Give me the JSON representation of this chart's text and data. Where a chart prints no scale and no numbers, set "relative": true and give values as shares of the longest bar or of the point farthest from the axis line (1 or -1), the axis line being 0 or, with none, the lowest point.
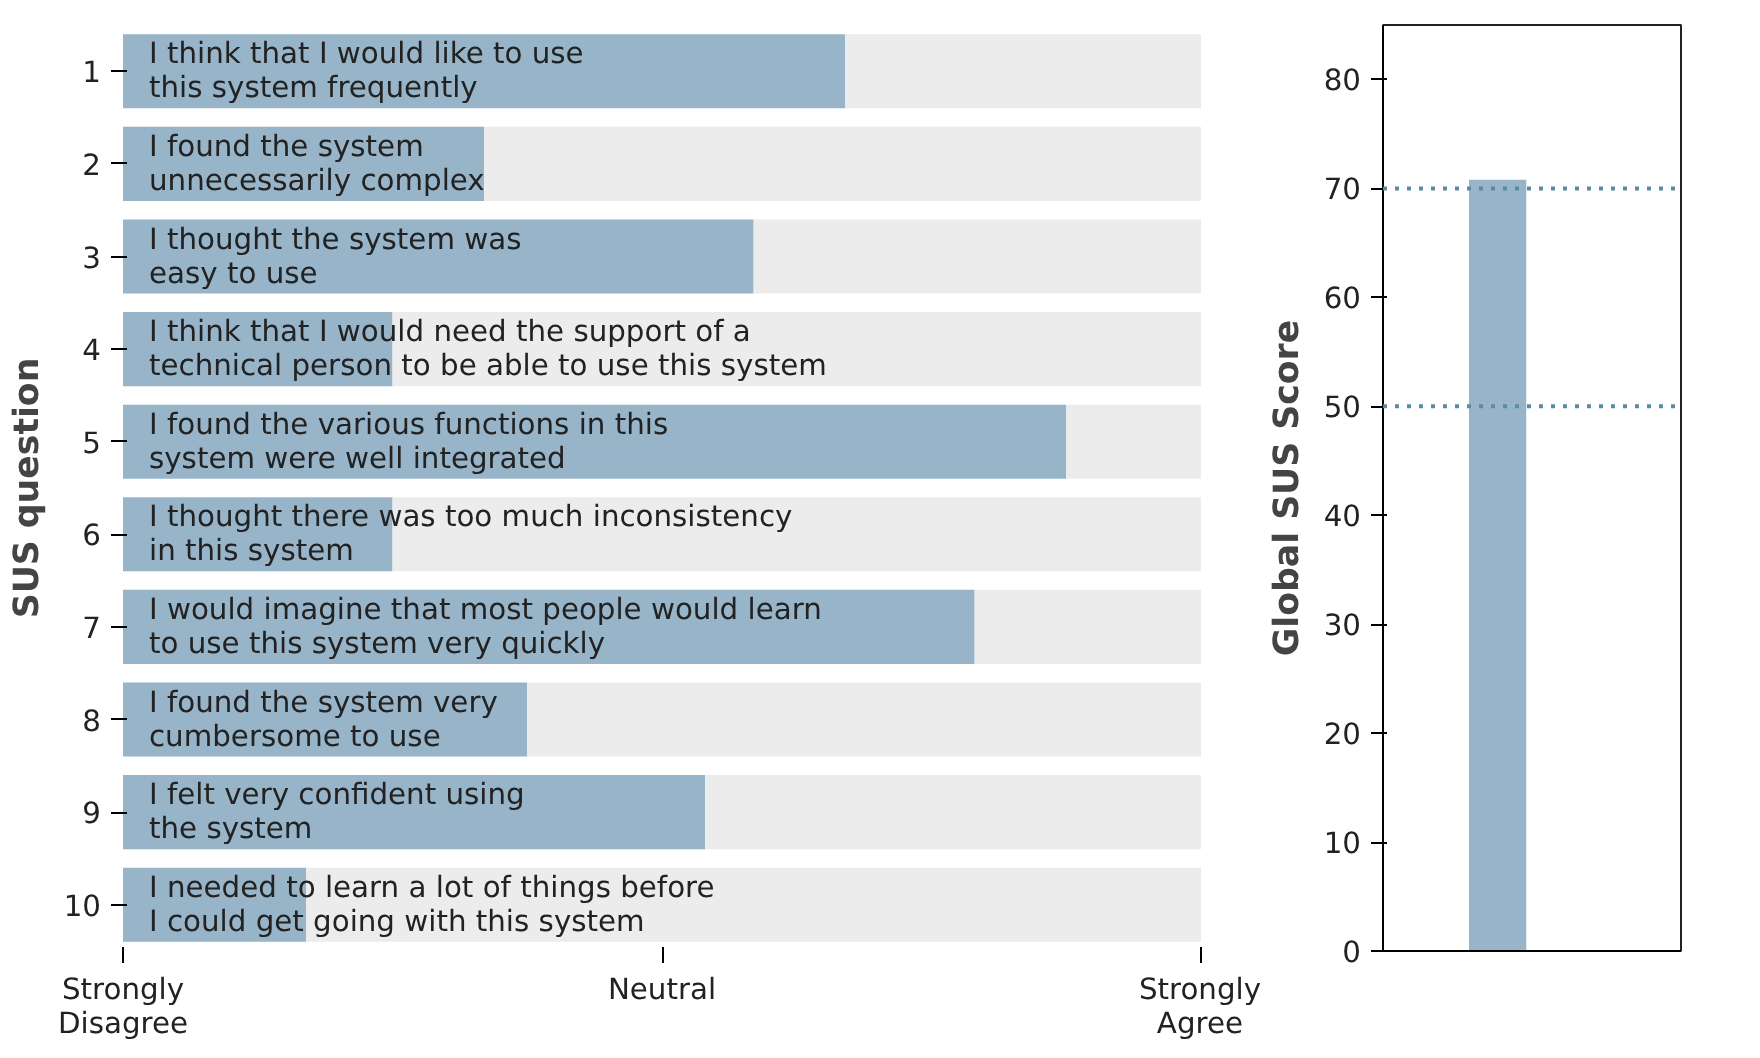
{
  "chart_data": [
    {
      "type": "bar",
      "orientation": "horizontal",
      "ylabel": "SUS question",
      "relative": true,
      "stacked": true,
      "categories": [
        "1",
        "2",
        "3",
        "4",
        "5",
        "6",
        "7",
        "8",
        "9",
        "10"
      ],
      "series": [
        {
          "color": "#98b4c8",
          "values": [
            0.67,
            0.335,
            0.585,
            0.25,
            0.875,
            0.25,
            0.79,
            0.375,
            0.54,
            0.17
          ]
        },
        {
          "color": "#ececec",
          "values": [
            0.33,
            0.665,
            0.415,
            0.75,
            0.125,
            0.75,
            0.21,
            0.625,
            0.46,
            0.83
          ]
        }
      ],
      "grid": false,
      "annotations": [
        "Strongly\nDisagree",
        "Neutral",
        "Strongly\nAgree",
        {
          "text": "I think that I would like to use\nthis system frequently",
          "y": "1"
        },
        {
          "text": "I found the system\nunnecessarily complex",
          "y": "2"
        },
        {
          "text": "I thought the system was\neasy to use",
          "y": "3"
        },
        {
          "text": "I think that I would need the support of a\ntechnical person to be able to use this system",
          "y": "4"
        },
        {
          "text": "I found the various functions in this\nsystem were well integrated",
          "y": "5"
        },
        {
          "text": "I thought there was too much inconsistency\nin this system",
          "y": "6"
        },
        {
          "text": "I would imagine that most people would learn\nto use this system very quickly",
          "y": "7"
        },
        {
          "text": "I found the system very\ncumbersome to use",
          "y": "8"
        },
        {
          "text": "I felt very confident using\nthe system",
          "y": "9"
        },
        {
          "text": "I needed to learn a lot of things before\nI could get going with this system",
          "y": "10"
        }
      ]
    },
    {
      "type": "bar",
      "ylabel": "Global SUS Score",
      "categories": [
        null
      ],
      "series": [
        {
          "color": "#98b4c8",
          "values": [
            70.8
          ]
        }
      ],
      "ylim": [
        0,
        85
      ],
      "yticks": [
        0,
        10,
        20,
        30,
        40,
        50,
        60,
        70,
        80
      ],
      "grid": false,
      "ref_lines": [
        {
          "axis": "y",
          "value": 70,
          "color": "#5b8ba0",
          "line_style": "dotted"
        },
        {
          "axis": "y",
          "value": 50,
          "color": "#5b8ba0",
          "line_style": "dotted"
        }
      ]
    }
  ]
}
